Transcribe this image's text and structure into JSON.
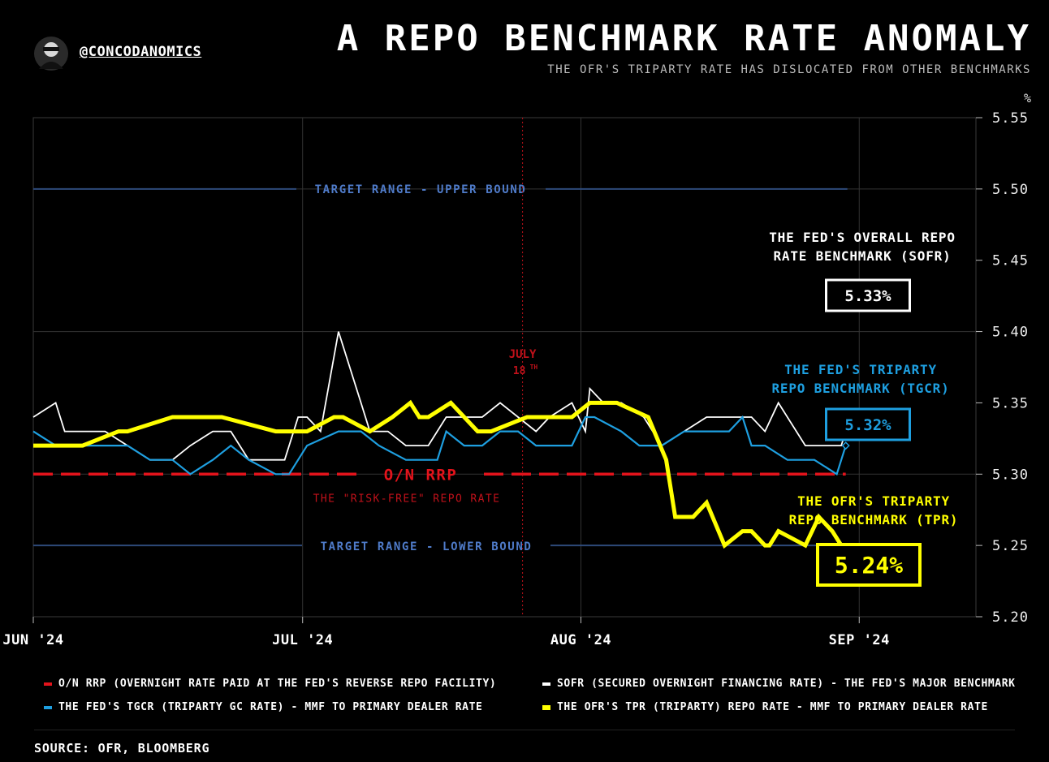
{
  "header": {
    "title": "A REPO BENCHMARK RATE ANOMALY",
    "subtitle": "THE OFR'S TRIPARTY RATE HAS DISLOCATED FROM OTHER BENCHMARKS",
    "handle": "@CONCODANOMICS",
    "y_unit": "%"
  },
  "legend": [
    {
      "label": "O/N RRP (OVERNIGHT RATE PAID AT THE FED'S REVERSE REPO FACILITY)",
      "color": "#e3131b"
    },
    {
      "label": "SOFR (SECURED OVERNIGHT FINANCING RATE) - THE FED'S MAJOR BENCHMARK",
      "color": "#ffffff"
    },
    {
      "label": "THE FED'S TGCR (TRIPARTY GC RATE) - MMF TO PRIMARY DEALER RATE",
      "color": "#1e9fe0"
    },
    {
      "label": "THE OFR'S TPR (TRIPARTY) REPO RATE - MMF TO PRIMARY DEALER RATE",
      "color": "#ffff00"
    }
  ],
  "footer": {
    "source": "SOURCE: OFR, BLOOMBERG"
  },
  "chart_data": {
    "type": "line",
    "x_unit": "days since Jun 1 2024",
    "ylim": [
      5.2,
      5.55
    ],
    "xlim": [
      0,
      105
    ],
    "yticks": [
      5.55,
      5.5,
      5.45,
      5.4,
      5.35,
      5.3,
      5.25,
      5.2
    ],
    "xticks": [
      {
        "label": "JUN '24",
        "x": 0
      },
      {
        "label": "JUL '24",
        "x": 30
      },
      {
        "label": "AUG '24",
        "x": 61
      },
      {
        "label": "SEP '24",
        "x": 92
      }
    ],
    "reference_lines": [
      {
        "name": "TARGET RANGE - UPPER BOUND",
        "label": "TARGET RANGE - UPPER BOUND",
        "y": 5.5,
        "color": "#2e4a7a"
      },
      {
        "name": "TARGET RANGE - LOWER BOUND",
        "label": "TARGET RANGE - LOWER BOUND",
        "y": 5.25,
        "color": "#2e4a7a"
      },
      {
        "name": "O/N RRP",
        "label": "O/N RRP",
        "sublabel": "THE \"RISK-FREE\" REPO RATE",
        "y": 5.3,
        "color": "#e3131b"
      }
    ],
    "event_line": {
      "x": 54.5,
      "label1": "JULY",
      "label2": "18",
      "sup": "TH",
      "color": "#c0111a"
    },
    "series": [
      {
        "name": "SOFR",
        "color": "#ffffff",
        "x": [
          0,
          2.5,
          3.5,
          5.5,
          8,
          10.5,
          13,
          15.5,
          17.5,
          20,
          22,
          24,
          28,
          29.5,
          30.5,
          32,
          34,
          36.5,
          37.5,
          39.5,
          41.5,
          44,
          46,
          48,
          50,
          52,
          54,
          56,
          57.5,
          60,
          61.5,
          62,
          63.5,
          65.5,
          68,
          70,
          72.5,
          75,
          79,
          80,
          81.5,
          83,
          86,
          87.5,
          89,
          90,
          90.5
        ],
        "values": [
          5.34,
          5.35,
          5.33,
          5.33,
          5.33,
          5.32,
          5.31,
          5.31,
          5.32,
          5.33,
          5.33,
          5.31,
          5.31,
          5.34,
          5.34,
          5.33,
          5.4,
          5.35,
          5.33,
          5.33,
          5.32,
          5.32,
          5.34,
          5.34,
          5.34,
          5.35,
          5.34,
          5.33,
          5.34,
          5.35,
          5.33,
          5.36,
          5.35,
          5.35,
          5.34,
          5.32,
          5.33,
          5.34,
          5.34,
          5.34,
          5.33,
          5.35,
          5.32,
          5.32,
          5.32,
          5.32,
          5.33
        ]
      },
      {
        "name": "TGCR",
        "color": "#1e9fe0",
        "x": [
          0,
          2.5,
          5.5,
          8,
          10.5,
          13,
          15.5,
          17.5,
          20,
          22,
          24,
          27,
          28.5,
          30.5,
          34,
          36.5,
          38.5,
          41.5,
          45,
          46,
          48,
          50,
          52,
          54,
          56,
          57.5,
          60,
          61.5,
          62.5,
          65.5,
          67.5,
          70,
          72.5,
          74,
          77.5,
          79,
          80,
          81.5,
          84,
          87,
          89.5,
          90.5
        ],
        "values": [
          5.33,
          5.32,
          5.32,
          5.32,
          5.32,
          5.31,
          5.31,
          5.3,
          5.31,
          5.32,
          5.31,
          5.3,
          5.3,
          5.32,
          5.33,
          5.33,
          5.32,
          5.31,
          5.31,
          5.33,
          5.32,
          5.32,
          5.33,
          5.33,
          5.32,
          5.32,
          5.32,
          5.34,
          5.34,
          5.33,
          5.32,
          5.32,
          5.33,
          5.33,
          5.33,
          5.34,
          5.32,
          5.32,
          5.31,
          5.31,
          5.3,
          5.32
        ]
      },
      {
        "name": "TPR",
        "color": "#ffff00",
        "x": [
          0,
          4.5,
          5.5,
          9.5,
          10.5,
          15.5,
          20,
          21,
          27,
          29.5,
          30.5,
          33.5,
          34.5,
          37.5,
          40,
          42,
          43,
          44,
          46.5,
          49.5,
          51,
          55,
          57.5,
          60,
          62,
          65,
          68.5,
          70.5,
          71.5,
          73.5,
          75,
          77,
          79,
          80,
          81.5,
          82,
          83,
          86,
          87.5,
          89,
          91
        ],
        "values": [
          5.32,
          5.32,
          5.32,
          5.33,
          5.33,
          5.34,
          5.34,
          5.34,
          5.33,
          5.33,
          5.33,
          5.34,
          5.34,
          5.33,
          5.34,
          5.35,
          5.34,
          5.34,
          5.35,
          5.33,
          5.33,
          5.34,
          5.34,
          5.34,
          5.35,
          5.35,
          5.34,
          5.31,
          5.27,
          5.27,
          5.28,
          5.25,
          5.26,
          5.26,
          5.25,
          5.25,
          5.26,
          5.25,
          5.27,
          5.26,
          5.24
        ]
      }
    ],
    "annotations": [
      {
        "name": "SOFR",
        "line1": "THE FED'S OVERALL REPO",
        "line2": "RATE BENCHMARK (SOFR)",
        "value_label": "5.33%",
        "color": "#ffffff"
      },
      {
        "name": "TGCR",
        "line1": "THE FED'S TRIPARTY",
        "line2": "REPO BENCHMARK (TGCR)",
        "value_label": "5.32%",
        "color": "#1e9fe0"
      },
      {
        "name": "TPR",
        "line1": "THE OFR'S TRIPARTY",
        "line2": "REPO BENCHMARK (TPR)",
        "value_label": "5.24%",
        "color": "#ffff00"
      }
    ]
  }
}
